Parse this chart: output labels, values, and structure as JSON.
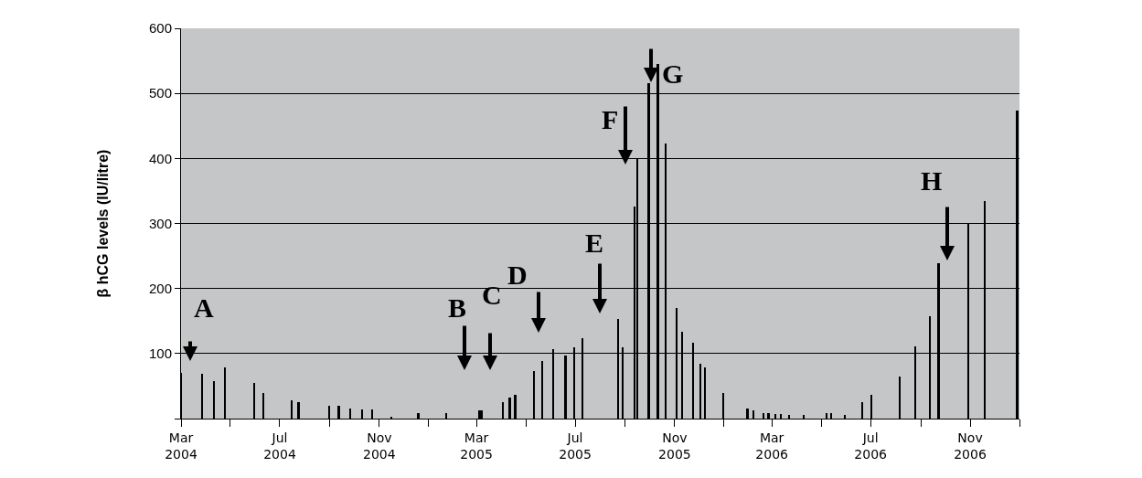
{
  "chart_data": {
    "type": "bar",
    "ylabel": "β hCG levels (IU/litre)",
    "x": [
      "2004-03-01",
      "2004-03-27",
      "2004-04-11",
      "2004-04-24",
      "2004-05-30",
      "2004-06-11",
      "2004-07-16",
      "2004-07-24",
      "2004-08-31",
      "2004-09-12",
      "2004-09-26",
      "2004-10-11",
      "2004-10-23",
      "2004-11-16",
      "2004-12-19",
      "2005-01-23",
      "2005-03-04",
      "2005-03-07",
      "2005-04-03",
      "2005-04-11",
      "2005-04-18",
      "2005-05-11",
      "2005-05-21",
      "2005-06-04",
      "2005-06-19",
      "2005-06-30",
      "2005-07-10",
      "2005-08-23",
      "2005-08-29",
      "2005-09-12",
      "2005-09-16",
      "2005-09-30",
      "2005-10-11",
      "2005-10-21",
      "2005-11-03",
      "2005-11-10",
      "2005-11-24",
      "2005-12-03",
      "2005-12-08",
      "2005-12-31",
      "2006-01-30",
      "2006-02-06",
      "2006-02-19",
      "2006-02-25",
      "2006-03-05",
      "2006-03-12",
      "2006-03-22",
      "2006-04-09",
      "2006-05-08",
      "2006-05-13",
      "2006-05-30",
      "2006-06-21",
      "2006-07-02",
      "2006-08-06",
      "2006-08-25",
      "2006-09-12",
      "2006-09-23",
      "2006-10-30",
      "2006-11-19",
      "2006-12-29"
    ],
    "values": [
      70,
      69,
      58,
      79,
      55,
      40,
      28,
      26,
      20,
      20,
      16,
      14,
      14,
      2,
      9,
      8,
      12,
      12,
      26,
      33,
      36,
      73,
      89,
      107,
      97,
      109,
      123,
      153,
      109,
      326,
      401,
      516,
      545,
      423,
      170,
      133,
      117,
      85,
      79,
      39,
      15,
      13,
      8,
      9,
      7,
      7,
      5,
      5,
      9,
      9,
      5,
      25,
      36,
      64,
      111,
      158,
      239,
      300,
      334,
      474
    ],
    "color": "#000000",
    "xlim": [
      "2004-03-01",
      "2007-01-01"
    ],
    "xticks": [
      {
        "value": "2004-03-01",
        "label": "Mar\n2004"
      },
      {
        "value": "2004-05-01",
        "label": null
      },
      {
        "value": "2004-07-01",
        "label": "Jul\n2004"
      },
      {
        "value": "2004-09-01",
        "label": null
      },
      {
        "value": "2004-11-01",
        "label": "Nov\n2004"
      },
      {
        "value": "2005-01-01",
        "label": null
      },
      {
        "value": "2005-03-01",
        "label": "Mar\n2005"
      },
      {
        "value": "2005-05-01",
        "label": null
      },
      {
        "value": "2005-07-01",
        "label": "Jul\n2005"
      },
      {
        "value": "2005-09-01",
        "label": null
      },
      {
        "value": "2005-11-01",
        "label": "Nov\n2005"
      },
      {
        "value": "2006-01-01",
        "label": null
      },
      {
        "value": "2006-03-01",
        "label": "Mar\n2006"
      },
      {
        "value": "2006-05-01",
        "label": null
      },
      {
        "value": "2006-07-01",
        "label": "Jul\n2006"
      },
      {
        "value": "2006-09-01",
        "label": null
      },
      {
        "value": "2006-11-01",
        "label": "Nov\n2006"
      },
      {
        "value": "2007-01-01",
        "label": null
      }
    ],
    "ylim": [
      0,
      600
    ],
    "yticks": [
      {
        "value": 0,
        "label": null
      },
      100,
      200,
      300,
      400,
      500,
      600
    ],
    "grid": "y",
    "annotations": [
      "A",
      "B",
      "C",
      "D",
      "E",
      "F",
      "G",
      "H"
    ]
  }
}
